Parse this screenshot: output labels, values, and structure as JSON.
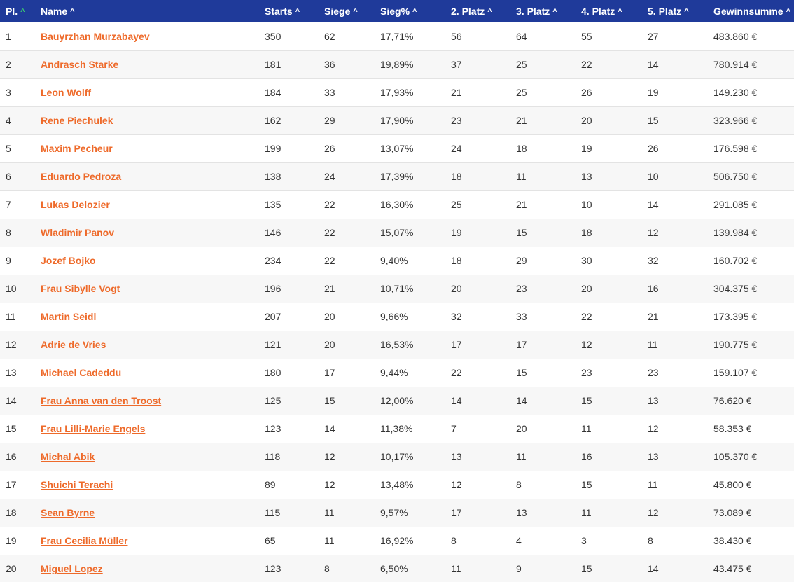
{
  "accent_colors": {
    "header_bg": "#1f3a9a",
    "link": "#ee6a2a",
    "sort_active": "#3ccf6f"
  },
  "headers": [
    {
      "key": "pl",
      "label": "Pl.",
      "sort_active": true
    },
    {
      "key": "name",
      "label": "Name",
      "sort_active": false
    },
    {
      "key": "starts",
      "label": "Starts",
      "sort_active": false
    },
    {
      "key": "siege",
      "label": "Siege",
      "sort_active": false
    },
    {
      "key": "siegpct",
      "label": "Sieg%",
      "sort_active": false
    },
    {
      "key": "p2",
      "label": "2. Platz",
      "sort_active": false
    },
    {
      "key": "p3",
      "label": "3. Platz",
      "sort_active": false
    },
    {
      "key": "p4",
      "label": "4. Platz",
      "sort_active": false
    },
    {
      "key": "p5",
      "label": "5. Platz",
      "sort_active": false
    },
    {
      "key": "gewinn",
      "label": "Gewinnsumme",
      "sort_active": false
    }
  ],
  "rows": [
    {
      "pl": "1",
      "name": "Bauyrzhan Murzabayev",
      "starts": "350",
      "siege": "62",
      "siegpct": "17,71%",
      "p2": "56",
      "p3": "64",
      "p4": "55",
      "p5": "27",
      "gewinn": "483.860 €"
    },
    {
      "pl": "2",
      "name": "Andrasch Starke",
      "starts": "181",
      "siege": "36",
      "siegpct": "19,89%",
      "p2": "37",
      "p3": "25",
      "p4": "22",
      "p5": "14",
      "gewinn": "780.914 €"
    },
    {
      "pl": "3",
      "name": "Leon Wolff",
      "starts": "184",
      "siege": "33",
      "siegpct": "17,93%",
      "p2": "21",
      "p3": "25",
      "p4": "26",
      "p5": "19",
      "gewinn": "149.230 €"
    },
    {
      "pl": "4",
      "name": "Rene Piechulek",
      "starts": "162",
      "siege": "29",
      "siegpct": "17,90%",
      "p2": "23",
      "p3": "21",
      "p4": "20",
      "p5": "15",
      "gewinn": "323.966 €"
    },
    {
      "pl": "5",
      "name": "Maxim Pecheur",
      "starts": "199",
      "siege": "26",
      "siegpct": "13,07%",
      "p2": "24",
      "p3": "18",
      "p4": "19",
      "p5": "26",
      "gewinn": "176.598 €"
    },
    {
      "pl": "6",
      "name": "Eduardo Pedroza",
      "starts": "138",
      "siege": "24",
      "siegpct": "17,39%",
      "p2": "18",
      "p3": "11",
      "p4": "13",
      "p5": "10",
      "gewinn": "506.750 €"
    },
    {
      "pl": "7",
      "name": "Lukas Delozier",
      "starts": "135",
      "siege": "22",
      "siegpct": "16,30%",
      "p2": "25",
      "p3": "21",
      "p4": "10",
      "p5": "14",
      "gewinn": "291.085 €"
    },
    {
      "pl": "8",
      "name": "Wladimir Panov",
      "starts": "146",
      "siege": "22",
      "siegpct": "15,07%",
      "p2": "19",
      "p3": "15",
      "p4": "18",
      "p5": "12",
      "gewinn": "139.984 €"
    },
    {
      "pl": "9",
      "name": "Jozef Bojko",
      "starts": "234",
      "siege": "22",
      "siegpct": "9,40%",
      "p2": "18",
      "p3": "29",
      "p4": "30",
      "p5": "32",
      "gewinn": "160.702 €"
    },
    {
      "pl": "10",
      "name": "Frau Sibylle Vogt",
      "starts": "196",
      "siege": "21",
      "siegpct": "10,71%",
      "p2": "20",
      "p3": "23",
      "p4": "20",
      "p5": "16",
      "gewinn": "304.375 €"
    },
    {
      "pl": "11",
      "name": "Martin Seidl",
      "starts": "207",
      "siege": "20",
      "siegpct": "9,66%",
      "p2": "32",
      "p3": "33",
      "p4": "22",
      "p5": "21",
      "gewinn": "173.395 €"
    },
    {
      "pl": "12",
      "name": "Adrie de Vries",
      "starts": "121",
      "siege": "20",
      "siegpct": "16,53%",
      "p2": "17",
      "p3": "17",
      "p4": "12",
      "p5": "11",
      "gewinn": "190.775 €"
    },
    {
      "pl": "13",
      "name": "Michael Cadeddu",
      "starts": "180",
      "siege": "17",
      "siegpct": "9,44%",
      "p2": "22",
      "p3": "15",
      "p4": "23",
      "p5": "23",
      "gewinn": "159.107 €"
    },
    {
      "pl": "14",
      "name": "Frau Anna van den Troost",
      "starts": "125",
      "siege": "15",
      "siegpct": "12,00%",
      "p2": "14",
      "p3": "14",
      "p4": "15",
      "p5": "13",
      "gewinn": "76.620 €"
    },
    {
      "pl": "15",
      "name": "Frau Lilli-Marie Engels",
      "starts": "123",
      "siege": "14",
      "siegpct": "11,38%",
      "p2": "7",
      "p3": "20",
      "p4": "11",
      "p5": "12",
      "gewinn": "58.353 €"
    },
    {
      "pl": "16",
      "name": "Michal Abik",
      "starts": "118",
      "siege": "12",
      "siegpct": "10,17%",
      "p2": "13",
      "p3": "11",
      "p4": "16",
      "p5": "13",
      "gewinn": "105.370 €"
    },
    {
      "pl": "17",
      "name": "Shuichi Terachi",
      "starts": "89",
      "siege": "12",
      "siegpct": "13,48%",
      "p2": "12",
      "p3": "8",
      "p4": "15",
      "p5": "11",
      "gewinn": "45.800 €"
    },
    {
      "pl": "18",
      "name": "Sean Byrne",
      "starts": "115",
      "siege": "11",
      "siegpct": "9,57%",
      "p2": "17",
      "p3": "13",
      "p4": "11",
      "p5": "12",
      "gewinn": "73.089 €"
    },
    {
      "pl": "19",
      "name": "Frau Cecilia Müller",
      "starts": "65",
      "siege": "11",
      "siegpct": "16,92%",
      "p2": "8",
      "p3": "4",
      "p4": "3",
      "p5": "8",
      "gewinn": "38.430 €"
    },
    {
      "pl": "20",
      "name": "Miguel Lopez",
      "starts": "123",
      "siege": "8",
      "siegpct": "6,50%",
      "p2": "11",
      "p3": "9",
      "p4": "15",
      "p5": "14",
      "gewinn": "43.475 €"
    }
  ]
}
